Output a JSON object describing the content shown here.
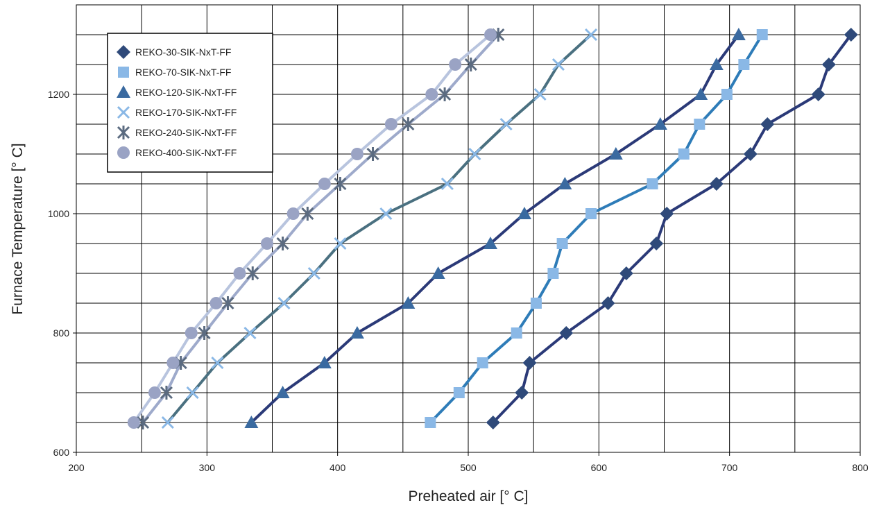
{
  "chart_data": {
    "type": "line",
    "x_label": "Preheated air [° C]",
    "y_label": "Furnace Temperature [° C]",
    "xlim": [
      200,
      800
    ],
    "xticks": [
      200,
      300,
      400,
      500,
      600,
      700,
      800
    ],
    "x_minor_grid": [
      250,
      350,
      450,
      550,
      650,
      750
    ],
    "ylim": [
      600,
      1350
    ],
    "yticks": [
      600,
      800,
      1000,
      1200
    ],
    "y_minor_grid": [
      650,
      700,
      750,
      850,
      900,
      950,
      1050,
      1100,
      1150,
      1250,
      1300
    ],
    "grid": true,
    "legend": "upper left",
    "series": [
      {
        "name": "REKO-30-SIK-NxT-FF",
        "marker": "diamond",
        "color": "#2f4a7a",
        "line_color": "#2b3a78",
        "x": [
          519,
          541,
          547,
          575,
          607,
          621,
          644,
          652,
          690,
          716,
          729,
          768,
          776,
          793
        ],
        "values": [
          650,
          700,
          750,
          800,
          850,
          900,
          950,
          1000,
          1050,
          1100,
          1150,
          1200,
          1250,
          1300
        ]
      },
      {
        "name": "REKO-70-SIK-NxT-FF",
        "marker": "square",
        "color": "#8ab8e6",
        "line_color": "#2e7cb8",
        "x": [
          471,
          493,
          511,
          537,
          552,
          565,
          572,
          594,
          641,
          665,
          677,
          698,
          711,
          725
        ],
        "values": [
          650,
          700,
          750,
          800,
          850,
          900,
          950,
          1000,
          1050,
          1100,
          1150,
          1200,
          1250,
          1300
        ]
      },
      {
        "name": "REKO-120-SIK-NxT-FF",
        "marker": "triangle",
        "color": "#3a6aa0",
        "line_color": "#2b3a78",
        "x": [
          334,
          358,
          390,
          415,
          454,
          477,
          517,
          543,
          574,
          613,
          647,
          678,
          690,
          707
        ],
        "values": [
          650,
          700,
          750,
          800,
          850,
          900,
          950,
          1000,
          1050,
          1100,
          1150,
          1200,
          1250,
          1300
        ]
      },
      {
        "name": "REKO-170-SIK-NxT-FF",
        "marker": "x",
        "color": "#8ab8e6",
        "line_color": "#4a7080",
        "x": [
          270,
          289,
          308,
          333,
          359,
          382,
          402,
          437,
          484,
          505,
          529,
          555,
          569,
          594
        ],
        "values": [
          650,
          700,
          750,
          800,
          850,
          900,
          950,
          1000,
          1050,
          1100,
          1150,
          1200,
          1250,
          1300
        ]
      },
      {
        "name": "REKO-240-SIK-NxT-FF",
        "marker": "asterisk",
        "color": "#5b6b80",
        "line_color": "#9eaacb",
        "x": [
          251,
          269,
          280,
          298,
          316,
          335,
          358,
          377,
          402,
          427,
          454,
          482,
          502,
          523
        ],
        "values": [
          650,
          700,
          750,
          800,
          850,
          900,
          950,
          1000,
          1050,
          1100,
          1150,
          1200,
          1250,
          1300
        ]
      },
      {
        "name": "REKO-400-SIK-NxT-FF",
        "marker": "circle",
        "color": "#9aa3c4",
        "line_color": "#b8c4de",
        "x": [
          244,
          260,
          274,
          288,
          307,
          325,
          346,
          366,
          390,
          415,
          441,
          472,
          490,
          517
        ],
        "values": [
          650,
          700,
          750,
          800,
          850,
          900,
          950,
          1000,
          1050,
          1100,
          1150,
          1200,
          1250,
          1300
        ]
      }
    ]
  }
}
